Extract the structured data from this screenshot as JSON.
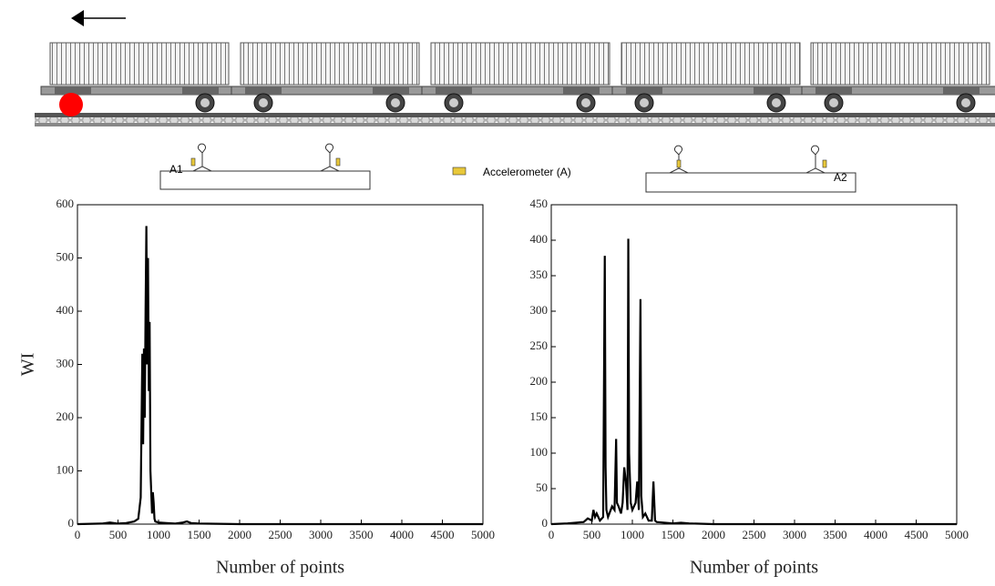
{
  "diagram": {
    "sensor_1": "A1",
    "sensor_2": "A2",
    "legend": "Accelerometer (A)"
  },
  "chart_data": [
    {
      "type": "line",
      "y_label": "WI",
      "x_label": "Number of points",
      "x": [
        0,
        300,
        400,
        500,
        600,
        700,
        750,
        780,
        800,
        810,
        820,
        830,
        840,
        850,
        860,
        870,
        880,
        890,
        900,
        910,
        920,
        930,
        940,
        950,
        960,
        1000,
        1100,
        1200,
        1300,
        1350,
        1400,
        1500,
        2000,
        3000,
        4000,
        5000
      ],
      "series": [
        {
          "color": "#000000",
          "values": [
            0,
            1,
            3,
            1,
            2,
            5,
            10,
            50,
            320,
            150,
            330,
            200,
            400,
            560,
            300,
            500,
            250,
            380,
            100,
            60,
            20,
            60,
            40,
            10,
            5,
            3,
            2,
            1,
            3,
            5,
            2,
            1,
            0,
            0,
            0,
            0
          ]
        }
      ],
      "xlim": [
        0,
        5000
      ],
      "xticks": [
        0,
        500,
        1000,
        1500,
        2000,
        2500,
        3000,
        3500,
        4000,
        4500,
        5000
      ],
      "ylim": [
        0,
        600
      ],
      "yticks": [
        0,
        100,
        200,
        300,
        400,
        500,
        600
      ]
    },
    {
      "type": "line",
      "x_label": "Number of points",
      "x": [
        0,
        200,
        300,
        400,
        450,
        500,
        520,
        540,
        560,
        600,
        640,
        660,
        670,
        680,
        700,
        750,
        780,
        800,
        810,
        830,
        860,
        880,
        900,
        920,
        940,
        950,
        960,
        980,
        1000,
        1040,
        1060,
        1080,
        1100,
        1110,
        1130,
        1160,
        1200,
        1240,
        1260,
        1280,
        1300,
        1400,
        1500,
        1600,
        1700,
        2000,
        3000,
        4000,
        5000
      ],
      "series": [
        {
          "color": "#000000",
          "values": [
            0,
            1,
            2,
            3,
            8,
            5,
            20,
            10,
            15,
            5,
            10,
            378,
            80,
            20,
            10,
            25,
            20,
            120,
            30,
            25,
            15,
            30,
            80,
            60,
            20,
            402,
            100,
            30,
            20,
            30,
            60,
            20,
            317,
            40,
            10,
            15,
            5,
            5,
            60,
            5,
            3,
            2,
            1,
            2,
            1,
            0,
            0,
            0,
            0
          ]
        }
      ],
      "xlim": [
        0,
        5000
      ],
      "xticks": [
        0,
        500,
        1000,
        1500,
        2000,
        2500,
        3000,
        3500,
        4000,
        4500,
        5000
      ],
      "ylim": [
        0,
        450
      ],
      "yticks": [
        0,
        50,
        100,
        150,
        200,
        250,
        300,
        350,
        400,
        450
      ]
    }
  ]
}
